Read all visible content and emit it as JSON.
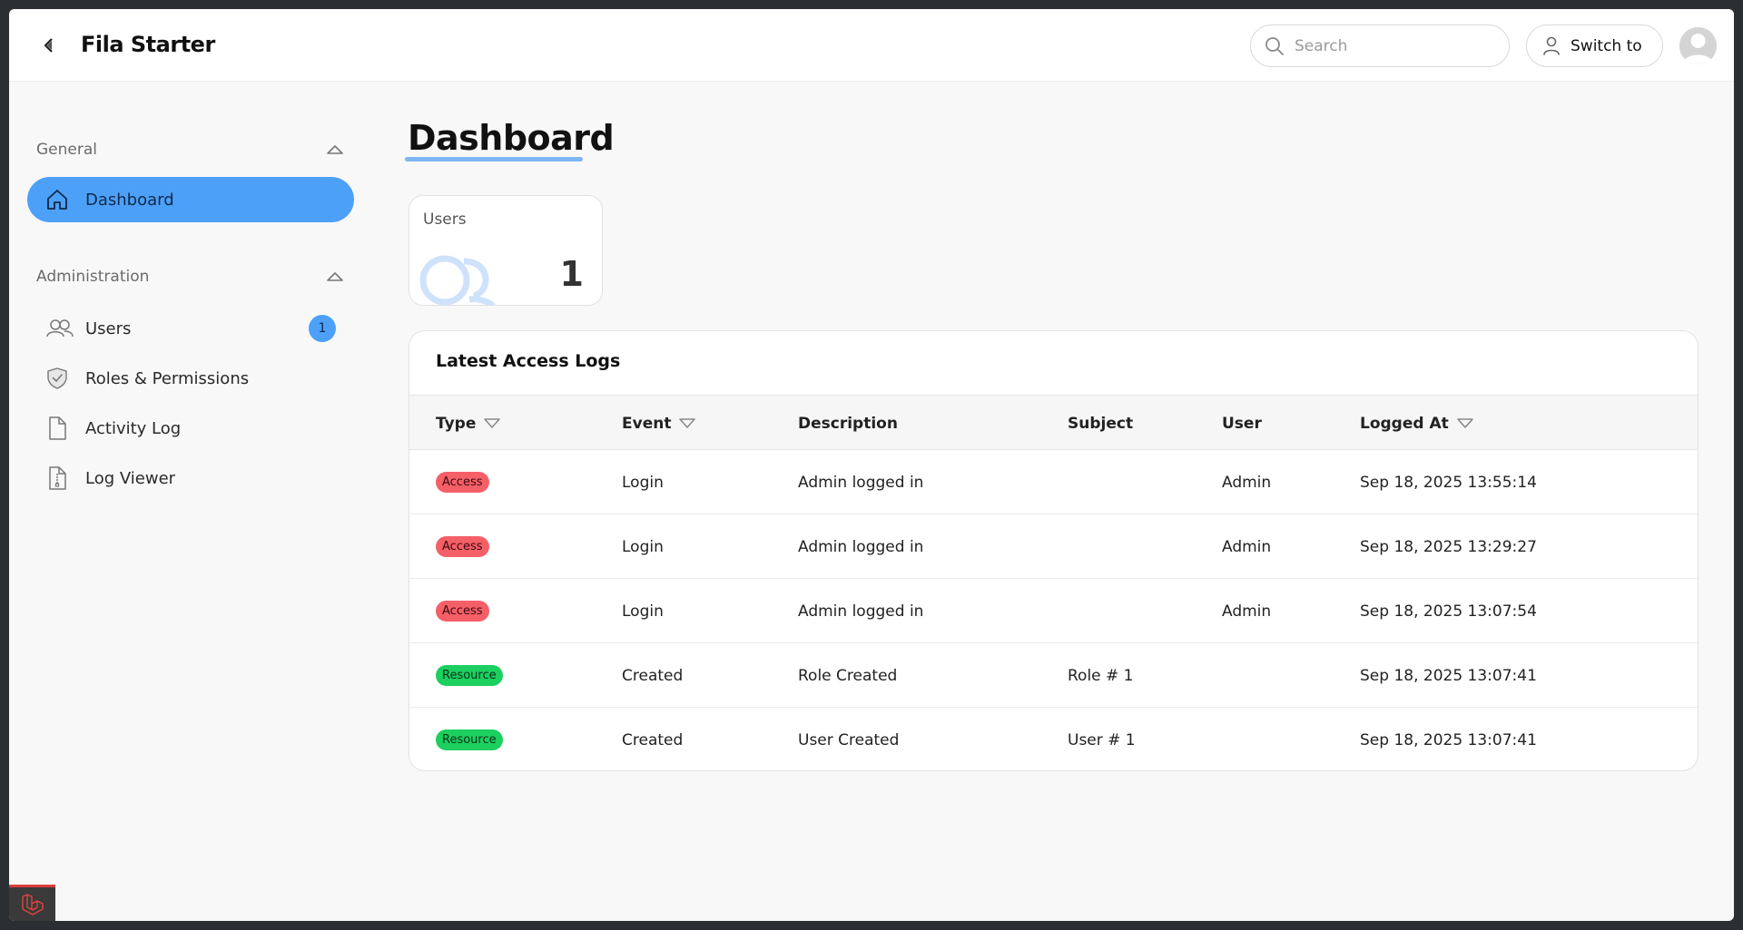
{
  "header": {
    "brand": "Fila Starter",
    "search_placeholder": "Search",
    "switch_label": "Switch to"
  },
  "sidebar": {
    "groups": [
      {
        "label": "General",
        "items": [
          {
            "label": "Dashboard",
            "icon": "home-icon",
            "active": true
          }
        ]
      },
      {
        "label": "Administration",
        "items": [
          {
            "label": "Users",
            "icon": "users-icon",
            "badge": "1"
          },
          {
            "label": "Roles & Permissions",
            "icon": "shield-check-icon"
          },
          {
            "label": "Activity Log",
            "icon": "document-icon"
          },
          {
            "label": "Log Viewer",
            "icon": "document-zip-icon"
          }
        ]
      }
    ]
  },
  "main": {
    "title": "Dashboard",
    "stat": {
      "label": "Users",
      "value": "1",
      "icon": "users-icon"
    },
    "table": {
      "title": "Latest Access Logs",
      "columns": [
        {
          "label": "Type",
          "sortable": true
        },
        {
          "label": "Event",
          "sortable": true
        },
        {
          "label": "Description",
          "sortable": false
        },
        {
          "label": "Subject",
          "sortable": false
        },
        {
          "label": "User",
          "sortable": false
        },
        {
          "label": "Logged At",
          "sortable": true
        }
      ],
      "rows": [
        {
          "type": "Access",
          "event": "Login",
          "description": "Admin logged in",
          "subject": "",
          "user": "Admin",
          "logged_at": "Sep 18, 2025 13:55:14"
        },
        {
          "type": "Access",
          "event": "Login",
          "description": "Admin logged in",
          "subject": "",
          "user": "Admin",
          "logged_at": "Sep 18, 2025 13:29:27"
        },
        {
          "type": "Access",
          "event": "Login",
          "description": "Admin logged in",
          "subject": "",
          "user": "Admin",
          "logged_at": "Sep 18, 2025 13:07:54"
        },
        {
          "type": "Resource",
          "event": "Created",
          "description": "Role Created",
          "subject": "Role # 1",
          "user": "",
          "logged_at": "Sep 18, 2025 13:07:41"
        },
        {
          "type": "Resource",
          "event": "Created",
          "description": "User Created",
          "subject": "User # 1",
          "user": "",
          "logged_at": "Sep 18, 2025 13:07:41"
        }
      ]
    }
  },
  "colors": {
    "accent": "#4da0f7",
    "access_badge": "#f55f68",
    "resource_badge": "#1ccf5f"
  }
}
